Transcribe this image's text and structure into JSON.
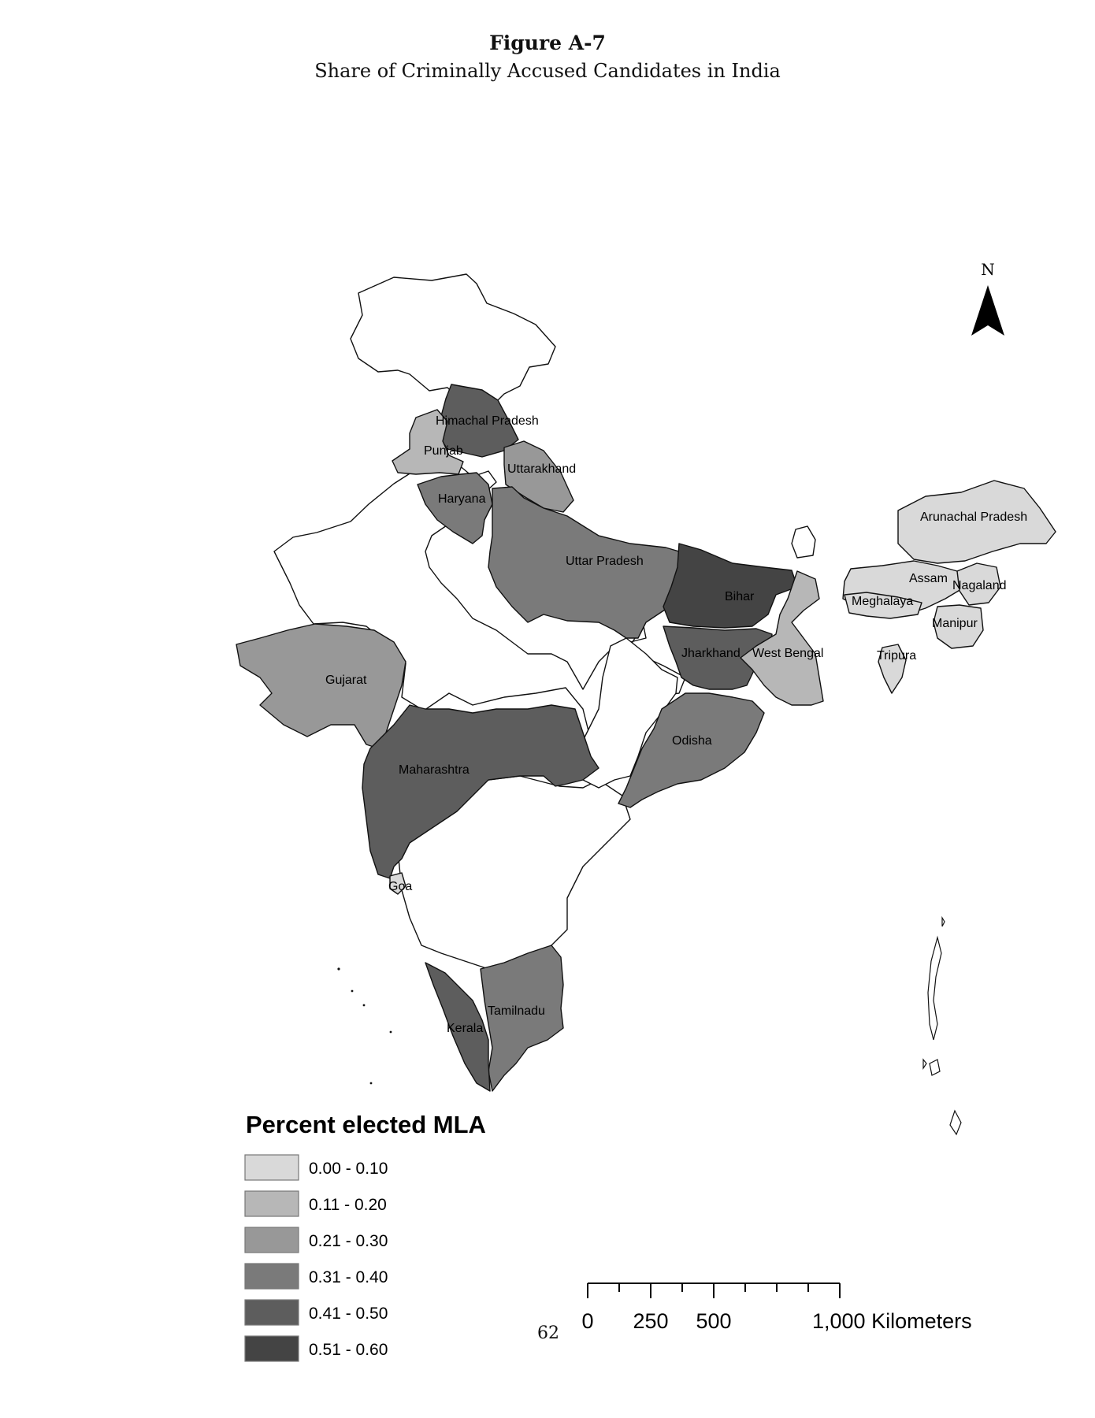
{
  "figure": {
    "label": "Figure A-7",
    "title": "Share of Criminally Accused Candidates in India",
    "page_number": "62"
  },
  "map": {
    "north_label": "N",
    "legend": {
      "title": "Percent elected MLA",
      "classes": [
        {
          "range": "0.00 - 0.10",
          "color": "#d9d9d9"
        },
        {
          "range": "0.11 - 0.20",
          "color": "#b7b7b7"
        },
        {
          "range": "0.21 - 0.30",
          "color": "#989898"
        },
        {
          "range": "0.31 - 0.40",
          "color": "#7a7a7a"
        },
        {
          "range": "0.41 - 0.50",
          "color": "#5d5d5d"
        },
        {
          "range": "0.51 - 0.60",
          "color": "#444444"
        }
      ]
    },
    "no_data_color": "#ffffff",
    "scale_bar": {
      "ticks": [
        "0",
        "250",
        "500",
        "1,000 Kilometers"
      ]
    },
    "states": [
      {
        "name": "Himachal Pradesh",
        "class": 4
      },
      {
        "name": "Punjab",
        "class": 1
      },
      {
        "name": "Uttarakhand",
        "class": 2
      },
      {
        "name": "Haryana",
        "class": 3
      },
      {
        "name": "Uttar Pradesh",
        "class": 3
      },
      {
        "name": "Bihar",
        "class": 5
      },
      {
        "name": "Arunachal Pradesh",
        "class": 0
      },
      {
        "name": "Assam",
        "class": 0
      },
      {
        "name": "Nagaland",
        "class": 0
      },
      {
        "name": "Meghalaya",
        "class": 0
      },
      {
        "name": "Manipur",
        "class": 0
      },
      {
        "name": "Tripura",
        "class": 0
      },
      {
        "name": "Jharkhand",
        "class": 4
      },
      {
        "name": "West Bengal",
        "class": 1
      },
      {
        "name": "Gujarat",
        "class": 2
      },
      {
        "name": "Odisha",
        "class": 3
      },
      {
        "name": "Maharashtra",
        "class": 4
      },
      {
        "name": "Goa",
        "class": 0
      },
      {
        "name": "Tamilnadu",
        "class": 3
      },
      {
        "name": "Kerala",
        "class": 4
      }
    ]
  }
}
